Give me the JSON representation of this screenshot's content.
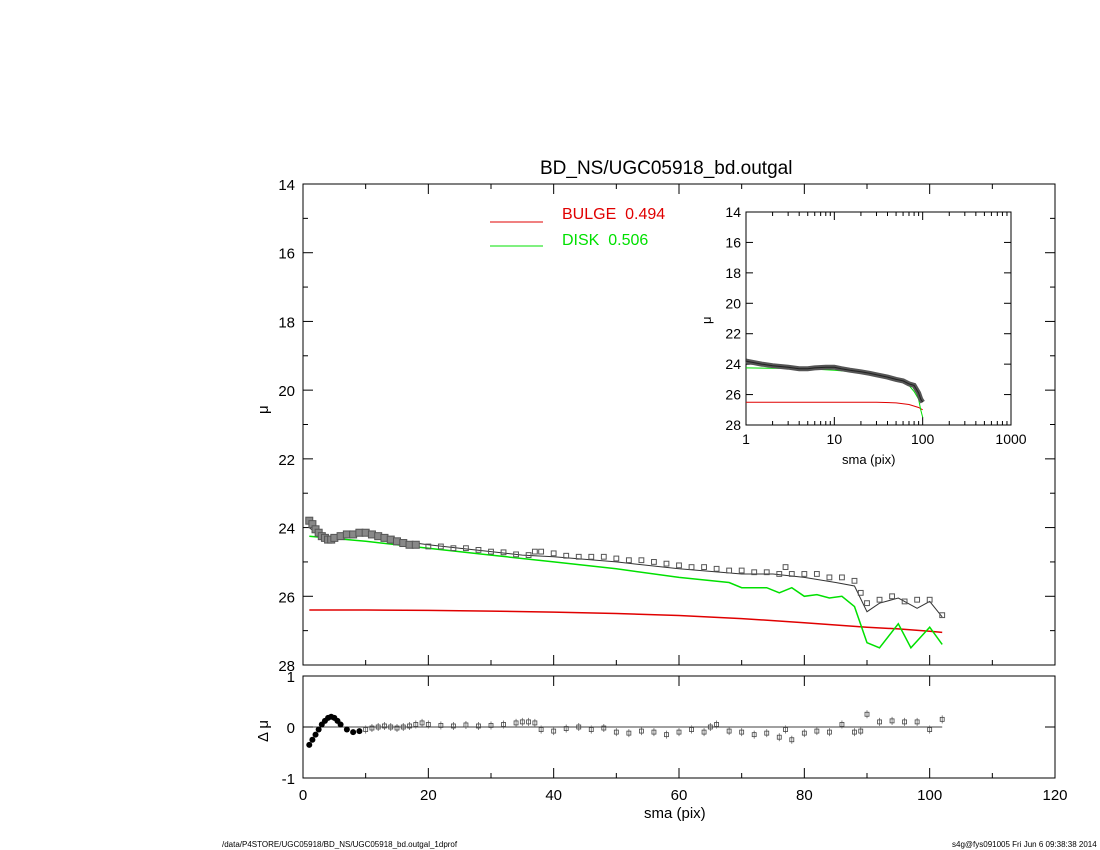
{
  "chart_data": [
    {
      "type": "scatter",
      "title": "BD_NS/UGC05918_bd.outgal",
      "xlabel": "sma (pix)",
      "ylabel": "μ",
      "xlim": [
        0,
        120
      ],
      "ylim": [
        28,
        14
      ],
      "x_ticks": [
        "0",
        "20",
        "40",
        "60",
        "80",
        "100",
        "120"
      ],
      "y_ticks": [
        "14",
        "16",
        "18",
        "20",
        "22",
        "24",
        "26",
        "28"
      ],
      "legend": [
        {
          "label": "BULGE",
          "value": "0.494",
          "color": "#e00000"
        },
        {
          "label": "DISK",
          "value": "0.506",
          "color": "#00e000"
        }
      ],
      "observed": {
        "marker": "open-square",
        "color": "#555555",
        "x": [
          1,
          1.5,
          2,
          2.5,
          3,
          3.5,
          4,
          4.5,
          5,
          6,
          7,
          8,
          9,
          10,
          11,
          12,
          13,
          14,
          15,
          16,
          17,
          18,
          20,
          22,
          24,
          26,
          28,
          30,
          32,
          34,
          36,
          37,
          38,
          40,
          42,
          44,
          46,
          48,
          50,
          52,
          54,
          56,
          58,
          60,
          62,
          64,
          66,
          68,
          70,
          72,
          74,
          76,
          77,
          78,
          80,
          82,
          84,
          86,
          88,
          89,
          90,
          92,
          94,
          96,
          98,
          100,
          102
        ],
        "y": [
          23.8,
          23.9,
          24.05,
          24.15,
          24.25,
          24.3,
          24.35,
          24.35,
          24.3,
          24.25,
          24.2,
          24.2,
          24.15,
          24.15,
          24.2,
          24.25,
          24.3,
          24.35,
          24.4,
          24.45,
          24.5,
          24.5,
          24.55,
          24.55,
          24.6,
          24.6,
          24.65,
          24.7,
          24.72,
          24.78,
          24.8,
          24.7,
          24.7,
          24.75,
          24.82,
          24.85,
          24.85,
          24.85,
          24.9,
          24.95,
          24.95,
          25.0,
          25.05,
          25.1,
          25.15,
          25.15,
          25.2,
          25.25,
          25.25,
          25.3,
          25.3,
          25.35,
          25.15,
          25.35,
          25.35,
          25.35,
          25.45,
          25.45,
          25.55,
          25.9,
          26.2,
          26.1,
          26.0,
          26.15,
          26.1,
          26.1,
          26.55
        ]
      },
      "model_total": {
        "color": "#333333",
        "x": [
          1,
          2,
          3,
          4,
          5,
          6,
          8,
          10,
          12,
          15,
          20,
          25,
          30,
          35,
          40,
          50,
          60,
          70,
          75,
          80,
          85,
          88,
          90,
          92,
          95,
          98,
          100,
          102
        ],
        "y": [
          24.0,
          24.15,
          24.3,
          24.35,
          24.3,
          24.25,
          24.2,
          24.2,
          24.25,
          24.38,
          24.5,
          24.6,
          24.7,
          24.8,
          24.85,
          25.0,
          25.2,
          25.35,
          25.35,
          25.45,
          25.6,
          25.7,
          26.45,
          26.2,
          26.05,
          26.35,
          26.15,
          26.6
        ]
      },
      "bulge_model": {
        "color": "#e00000",
        "x": [
          1,
          10,
          20,
          30,
          40,
          50,
          60,
          70,
          80,
          90,
          95,
          100,
          102
        ],
        "y": [
          26.4,
          26.4,
          26.41,
          26.43,
          26.46,
          26.5,
          26.56,
          26.65,
          26.77,
          26.9,
          26.95,
          27.02,
          27.05
        ]
      },
      "disk_model": {
        "color": "#00e000",
        "x": [
          1,
          10,
          20,
          30,
          40,
          50,
          60,
          68,
          70,
          74,
          76,
          78,
          80,
          82,
          84,
          86,
          88,
          90,
          92,
          95,
          97,
          100,
          102
        ],
        "y": [
          24.25,
          24.4,
          24.6,
          24.8,
          25.0,
          25.2,
          25.45,
          25.6,
          25.75,
          25.75,
          25.9,
          25.75,
          26.0,
          25.95,
          26.05,
          26.0,
          26.3,
          27.35,
          27.5,
          26.8,
          27.5,
          26.9,
          27.4
        ]
      }
    },
    {
      "type": "line",
      "xlabel": "sma (pix)",
      "ylabel": "μ",
      "x_scale": "log",
      "xlim": [
        1,
        1000
      ],
      "ylim": [
        28,
        14
      ],
      "x_ticks": [
        "1",
        "10",
        "100",
        "1000"
      ],
      "y_ticks": [
        "14",
        "16",
        "18",
        "20",
        "22",
        "24",
        "26",
        "28"
      ],
      "observed": {
        "x": [
          1,
          1.5,
          2,
          3,
          4,
          5,
          6,
          8,
          10,
          12,
          15,
          20,
          25,
          30,
          40,
          50,
          60,
          70,
          80,
          90,
          95,
          100
        ],
        "y": [
          23.8,
          24.0,
          24.1,
          24.2,
          24.3,
          24.3,
          24.25,
          24.2,
          24.2,
          24.3,
          24.4,
          24.5,
          24.6,
          24.7,
          24.85,
          25.0,
          25.1,
          25.3,
          25.4,
          25.9,
          26.3,
          26.5
        ]
      },
      "bulge_model": {
        "x": [
          1,
          5,
          10,
          20,
          30,
          50,
          70,
          90,
          100
        ],
        "y": [
          26.5,
          26.5,
          26.5,
          26.5,
          26.5,
          26.55,
          26.65,
          26.85,
          27.0
        ]
      },
      "disk_model": {
        "x": [
          1,
          5,
          10,
          20,
          30,
          50,
          70,
          80,
          90,
          95,
          100
        ],
        "y": [
          24.25,
          24.3,
          24.4,
          24.55,
          24.7,
          25.0,
          25.4,
          25.8,
          26.3,
          27.0,
          27.5
        ]
      }
    },
    {
      "type": "scatter",
      "xlabel": "sma (pix)",
      "ylabel": "Δ μ",
      "xlim": [
        0,
        120
      ],
      "ylim": [
        -1,
        1
      ],
      "x_ticks": [
        "0",
        "20",
        "40",
        "60",
        "80",
        "100",
        "120"
      ],
      "y_ticks": [
        "1",
        "0",
        "-1"
      ],
      "residuals": {
        "x": [
          1,
          1.5,
          2,
          2.5,
          3,
          3.5,
          4,
          4.5,
          5,
          5.5,
          6,
          7,
          8,
          9,
          10,
          11,
          12,
          13,
          14,
          15,
          16,
          17,
          18,
          19,
          20,
          22,
          24,
          26,
          28,
          30,
          32,
          34,
          35,
          36,
          37,
          38,
          40,
          42,
          44,
          46,
          48,
          50,
          52,
          54,
          56,
          58,
          60,
          62,
          64,
          65,
          66,
          68,
          70,
          72,
          74,
          76,
          77,
          78,
          80,
          82,
          84,
          86,
          88,
          89,
          90,
          92,
          94,
          96,
          98,
          100,
          102
        ],
        "y": [
          -0.35,
          -0.25,
          -0.15,
          -0.05,
          0.05,
          0.12,
          0.18,
          0.2,
          0.18,
          0.12,
          0.05,
          -0.05,
          -0.1,
          -0.08,
          -0.05,
          -0.02,
          0.0,
          0.02,
          0.0,
          -0.02,
          0.0,
          0.02,
          0.05,
          0.08,
          0.05,
          0.03,
          0.02,
          0.04,
          0.02,
          0.03,
          0.05,
          0.08,
          0.1,
          0.1,
          0.08,
          -0.05,
          -0.08,
          -0.03,
          0.0,
          -0.05,
          -0.02,
          -0.1,
          -0.12,
          -0.08,
          -0.1,
          -0.15,
          -0.1,
          -0.05,
          -0.1,
          0.0,
          0.05,
          -0.08,
          -0.1,
          -0.15,
          -0.12,
          -0.2,
          -0.05,
          -0.25,
          -0.12,
          -0.08,
          -0.1,
          0.05,
          -0.1,
          -0.08,
          0.25,
          0.1,
          0.12,
          0.1,
          0.1,
          -0.05,
          0.15
        ]
      }
    }
  ],
  "footer": {
    "path": "/data/P4STORE/UGC05918/BD_NS/UGC05918_bd.outgal_1dprof",
    "stamp": "s4g@fys091005  Fri Jun  6 09:38:38 2014"
  }
}
